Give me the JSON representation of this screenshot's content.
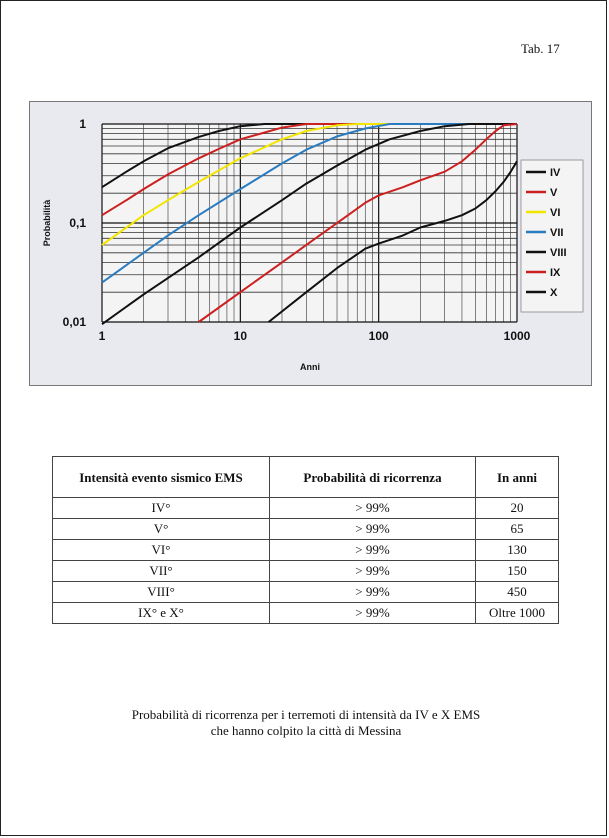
{
  "header": {
    "tab_label": "Tab. 17"
  },
  "chart_data": {
    "type": "line",
    "xlabel": "Anni",
    "ylabel": "Probabilità",
    "x_scale": "log",
    "y_scale": "log",
    "xlim": [
      1,
      1000
    ],
    "ylim": [
      0.01,
      1
    ],
    "x_ticks": [
      "1",
      "10",
      "100",
      "1000"
    ],
    "y_ticks": [
      "1",
      "0,1",
      "0,01"
    ],
    "grid": true,
    "legend_position": "right",
    "series": [
      {
        "name": "IV",
        "color": "#111111",
        "points": [
          [
            1,
            0.23
          ],
          [
            1.5,
            0.33
          ],
          [
            2,
            0.42
          ],
          [
            3,
            0.57
          ],
          [
            5,
            0.74
          ],
          [
            7,
            0.85
          ],
          [
            10,
            0.95
          ],
          [
            15,
            1
          ],
          [
            1000,
            1
          ]
        ]
      },
      {
        "name": "V",
        "color": "#cc2020",
        "points": [
          [
            1,
            0.12
          ],
          [
            1.5,
            0.17
          ],
          [
            2,
            0.22
          ],
          [
            3,
            0.31
          ],
          [
            5,
            0.45
          ],
          [
            7,
            0.56
          ],
          [
            10,
            0.7
          ],
          [
            15,
            0.82
          ],
          [
            20,
            0.92
          ],
          [
            30,
            1
          ],
          [
            1000,
            1
          ]
        ]
      },
      {
        "name": "VI",
        "color": "#f2e600",
        "points": [
          [
            1,
            0.06
          ],
          [
            2,
            0.12
          ],
          [
            3,
            0.17
          ],
          [
            5,
            0.26
          ],
          [
            10,
            0.45
          ],
          [
            20,
            0.7
          ],
          [
            30,
            0.85
          ],
          [
            50,
            0.97
          ],
          [
            70,
            1
          ],
          [
            1000,
            1
          ]
        ]
      },
      {
        "name": "VII",
        "color": "#2a7cc0",
        "points": [
          [
            1,
            0.025
          ],
          [
            2,
            0.05
          ],
          [
            3,
            0.075
          ],
          [
            5,
            0.12
          ],
          [
            10,
            0.22
          ],
          [
            20,
            0.4
          ],
          [
            30,
            0.55
          ],
          [
            50,
            0.75
          ],
          [
            80,
            0.9
          ],
          [
            120,
            1
          ],
          [
            1000,
            1
          ]
        ]
      },
      {
        "name": "VIII",
        "color": "#111111",
        "points": [
          [
            1,
            0.0095
          ],
          [
            2,
            0.019
          ],
          [
            5,
            0.045
          ],
          [
            10,
            0.09
          ],
          [
            20,
            0.17
          ],
          [
            30,
            0.25
          ],
          [
            50,
            0.38
          ],
          [
            80,
            0.55
          ],
          [
            120,
            0.7
          ],
          [
            200,
            0.85
          ],
          [
            300,
            0.95
          ],
          [
            450,
            1
          ],
          [
            1000,
            1
          ]
        ]
      },
      {
        "name": "IX",
        "color": "#cc2020",
        "points": [
          [
            5,
            0.01
          ],
          [
            10,
            0.02
          ],
          [
            20,
            0.04
          ],
          [
            40,
            0.08
          ],
          [
            60,
            0.12
          ],
          [
            80,
            0.16
          ],
          [
            100,
            0.19
          ],
          [
            150,
            0.23
          ],
          [
            200,
            0.27
          ],
          [
            300,
            0.33
          ],
          [
            400,
            0.42
          ],
          [
            500,
            0.55
          ],
          [
            600,
            0.7
          ],
          [
            700,
            0.85
          ],
          [
            800,
            0.97
          ],
          [
            1000,
            1
          ]
        ]
      },
      {
        "name": "X",
        "color": "#111111",
        "points": [
          [
            16,
            0.01
          ],
          [
            30,
            0.02
          ],
          [
            50,
            0.035
          ],
          [
            80,
            0.055
          ],
          [
            100,
            0.062
          ],
          [
            150,
            0.075
          ],
          [
            200,
            0.09
          ],
          [
            300,
            0.105
          ],
          [
            400,
            0.12
          ],
          [
            500,
            0.14
          ],
          [
            600,
            0.17
          ],
          [
            700,
            0.21
          ],
          [
            800,
            0.26
          ],
          [
            900,
            0.33
          ],
          [
            1000,
            0.42
          ]
        ]
      }
    ]
  },
  "table": {
    "headers": [
      "Intensità evento sismico EMS",
      "Probabilità di ricorrenza",
      "In anni"
    ],
    "rows": [
      [
        "IV°",
        "> 99%",
        "20"
      ],
      [
        "V°",
        "> 99%",
        "65"
      ],
      [
        "VI°",
        "> 99%",
        "130"
      ],
      [
        "VII°",
        "> 99%",
        "150"
      ],
      [
        "VIII°",
        "> 99%",
        "450"
      ],
      [
        "IX° e X°",
        "> 99%",
        "Oltre 1000"
      ]
    ]
  },
  "caption": {
    "line1": "Probabilità di ricorrenza per i terremoti di intensità da IV e X EMS",
    "line2": "che hanno colpito la città di Messina"
  }
}
